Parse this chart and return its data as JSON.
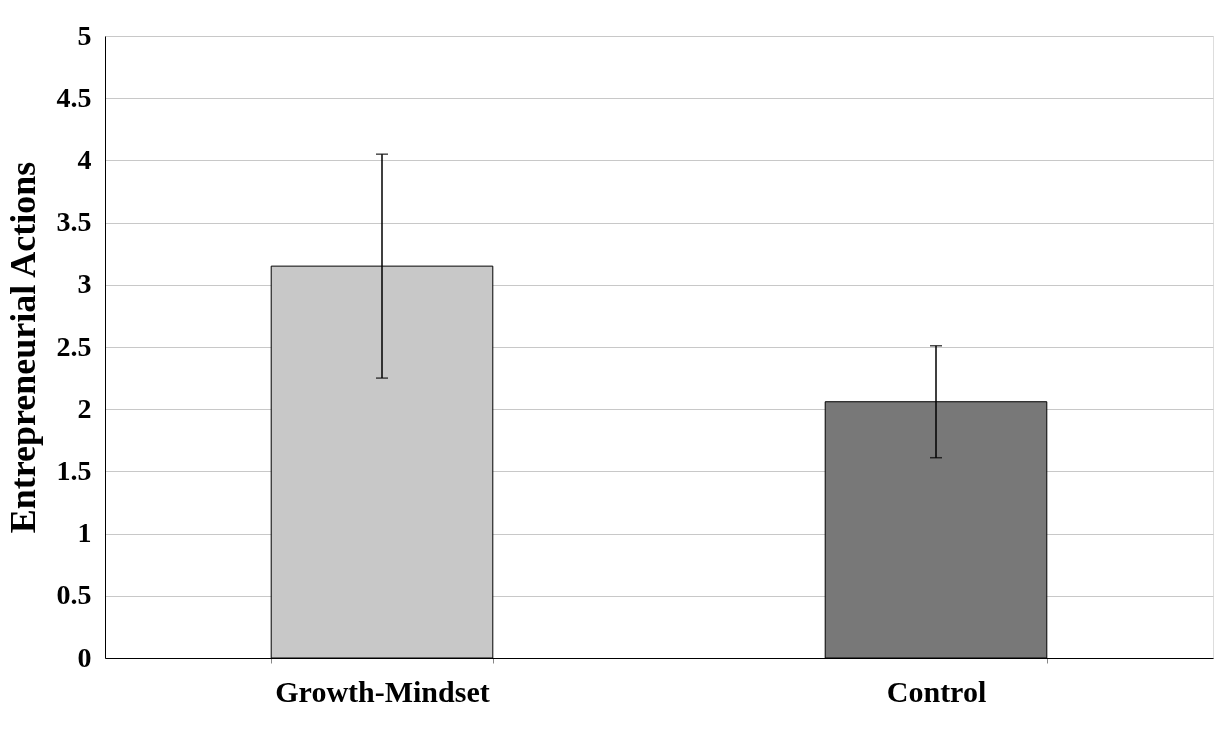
{
  "chart_data": {
    "type": "bar",
    "ylabel": "Entrepreneurial Actions",
    "categories": [
      "Growth-Mindset",
      "Control"
    ],
    "values": [
      3.15,
      2.06
    ],
    "errors": [
      0.9,
      0.45
    ],
    "colors": [
      "#c8c8c8",
      "#787878"
    ],
    "ylim": [
      0,
      5
    ],
    "yticks": [
      0,
      0.5,
      1,
      1.5,
      2,
      2.5,
      3,
      3.5,
      4,
      4.5,
      5
    ],
    "grid": "y"
  }
}
